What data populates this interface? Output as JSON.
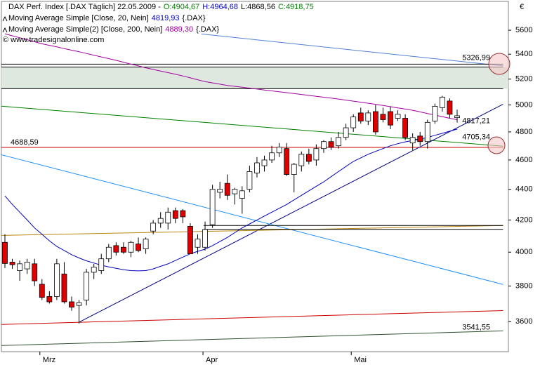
{
  "chart_data": {
    "type": "candlestick",
    "title": "DAX Perf. Index [.DAX Täglich] 22.05.2009 -",
    "ohlc_labels": [
      {
        "label": "O:4904,67",
        "color": "#008000"
      },
      {
        "label": "H:4964,68",
        "color": "#0000cc"
      },
      {
        "label": "L:4868,56",
        "color": "#000000"
      },
      {
        "label": "C:4918,75",
        "color": "#008000"
      }
    ],
    "symbol": "{.DAX}",
    "copyright": "© www.tradesignalonline.com",
    "currency": "€",
    "up_color": "#ffffff",
    "down_color": "#e00000",
    "log": true,
    "grid": false,
    "ylim": [
      3440,
      5850
    ],
    "yticks": [
      3600,
      3800,
      4000,
      4200,
      4400,
      4600,
      4800,
      5000,
      5200,
      5400,
      5600
    ],
    "categories": [
      null,
      null,
      null,
      null,
      null,
      "Mrz",
      null,
      null,
      null,
      null,
      null,
      null,
      null,
      null,
      null,
      null,
      null,
      null,
      null,
      null,
      null,
      null,
      null,
      null,
      null,
      null,
      null,
      "Apr",
      null,
      null,
      null,
      null,
      null,
      null,
      null,
      null,
      null,
      null,
      null,
      null,
      null,
      null,
      null,
      null,
      null,
      null,
      null,
      "Mai",
      null,
      null,
      null,
      null,
      null,
      null,
      null,
      null,
      null,
      null,
      null,
      null,
      null,
      null
    ],
    "open": [
      4060,
      3940,
      3890,
      3900,
      3930,
      3810,
      3740,
      3740,
      3870,
      3710,
      3690,
      3720,
      3880,
      3890,
      3960,
      4040,
      4030,
      4000,
      4050,
      4020,
      4130,
      4180,
      4180,
      4260,
      4260,
      4160,
      4030,
      4030,
      4170,
      4380,
      4440,
      4370,
      4340,
      4400,
      4510,
      4560,
      4600,
      4650,
      4680,
      4500,
      4560,
      4640,
      4600,
      4680,
      4730,
      4700,
      4760,
      4830,
      4940,
      4880,
      4950,
      4930,
      4950,
      4900,
      4900,
      4720,
      4770,
      4730,
      4880,
      4980,
      5030,
      4904.67
    ],
    "high": [
      4110,
      3960,
      3950,
      3960,
      3960,
      3840,
      3770,
      3960,
      3940,
      3740,
      3720,
      3900,
      3930,
      3990,
      4050,
      4060,
      4060,
      4070,
      4090,
      4090,
      4200,
      4250,
      4280,
      4280,
      4270,
      4180,
      4110,
      4190,
      4430,
      4450,
      4500,
      4410,
      4420,
      4560,
      4620,
      4630,
      4700,
      4720,
      4720,
      4580,
      4660,
      4680,
      4710,
      4740,
      4760,
      4800,
      4860,
      4930,
      4980,
      4960,
      5000,
      4980,
      4990,
      4960,
      4930,
      4790,
      4800,
      4890,
      5010,
      5070,
      5050,
      4964.68
    ],
    "low": [
      3905,
      3900,
      3830,
      3870,
      3800,
      3720,
      3700,
      3720,
      3700,
      3660,
      3590,
      3690,
      3840,
      3870,
      3940,
      3980,
      3990,
      3970,
      4000,
      3990,
      4110,
      4150,
      4140,
      4180,
      4180,
      3990,
      3990,
      4010,
      4150,
      4340,
      4330,
      4300,
      4240,
      4380,
      4480,
      4520,
      4580,
      4620,
      4490,
      4380,
      4520,
      4570,
      4560,
      4650,
      4670,
      4680,
      4740,
      4800,
      4860,
      4850,
      4780,
      4870,
      4820,
      4880,
      4740,
      4670,
      4700,
      4680,
      4860,
      4950,
      4900,
      4868.56
    ],
    "close": [
      3932,
      3925,
      3930,
      3940,
      3830,
      3735,
      3710,
      3930,
      3710,
      3680,
      3705,
      3880,
      3910,
      3960,
      4030,
      4000,
      4000,
      4060,
      4010,
      4080,
      4180,
      4210,
      4250,
      4210,
      4220,
      3990,
      4080,
      4140,
      4400,
      4400,
      4360,
      4400,
      4390,
      4520,
      4580,
      4600,
      4650,
      4690,
      4500,
      4570,
      4640,
      4590,
      4680,
      4730,
      4690,
      4760,
      4830,
      4910,
      4880,
      4940,
      4800,
      4890,
      4850,
      4930,
      4760,
      4760,
      4730,
      4870,
      4990,
      5060,
      4930,
      4918.75
    ],
    "series": [
      {
        "name": "Moving Average Simple [Close, 20, Nein]",
        "color": "#0000c0",
        "last_label": "4819,93",
        "values": [
          4356,
          4300,
          4250,
          4200,
          4150,
          4110,
          4070,
          4035,
          4010,
          3985,
          3965,
          3948,
          3935,
          3922,
          3912,
          3903,
          3895,
          3890,
          3888,
          3890,
          3900,
          3915,
          3930,
          3950,
          3970,
          3990,
          4005,
          4018,
          4040,
          4065,
          4090,
          4120,
          4150,
          4175,
          4200,
          4225,
          4250,
          4275,
          4300,
          4330,
          4360,
          4390,
          4420,
          4450,
          4485,
          4520,
          4555,
          4590,
          4615,
          4640,
          4660,
          4680,
          4700,
          4715,
          4728,
          4738,
          4748,
          4760,
          4775,
          4790,
          4805,
          4819.93
        ]
      },
      {
        "name": "Moving Average Simple(2) [Close, 200, Nein]",
        "color": "#a000a0",
        "last_label": "4889,30",
        "values": [
          5570,
          5553,
          5536,
          5520,
          5503,
          5486,
          5473,
          5460,
          5446,
          5433,
          5420,
          5406,
          5392,
          5378,
          5364,
          5350,
          5335,
          5320,
          5305,
          5290,
          5277,
          5264,
          5251,
          5238,
          5225,
          5210,
          5195,
          5180,
          5170,
          5160,
          5150,
          5143,
          5136,
          5129,
          5122,
          5115,
          5108,
          5101,
          5094,
          5087,
          5080,
          5073,
          5066,
          5059,
          5052,
          5045,
          5037,
          5029,
          5021,
          5013,
          5005,
          4996,
          4987,
          4978,
          4969,
          4960,
          4948,
          4936,
          4924,
          4912,
          4900,
          4889.3
        ]
      }
    ],
    "zones": [
      {
        "values": [
          5125,
          5296
        ],
        "color": "#dfe8df"
      }
    ],
    "lines": [
      {
        "color": "#5080d8",
        "x": [
          26.5,
          67.2
        ],
        "values": [
          5568,
          5305
        ],
        "label": "5326,99",
        "label_at": "right"
      },
      {
        "color": "#000000",
        "x": [
          -0.5,
          67.2
        ],
        "values": [
          5319,
          5319
        ]
      },
      {
        "color": "#000000",
        "x": [
          -0.5,
          67.2
        ],
        "values": [
          5296,
          5296
        ]
      },
      {
        "color": "#000000",
        "x": [
          -0.5,
          67.2
        ],
        "values": [
          5125,
          5125
        ]
      },
      {
        "color": "#008000",
        "x": [
          -0.5,
          67.2
        ],
        "values": [
          4991,
          4697
        ],
        "label": "4705,34",
        "label_at": "right"
      },
      {
        "color": "#cc0000",
        "x": [
          -0.5,
          67.2
        ],
        "values": [
          4688.59,
          4688.59
        ],
        "label": "4688,59",
        "label_at": "left"
      },
      {
        "color": "#000080",
        "x": [
          9.9,
          67.2
        ],
        "values": [
          3595,
          5006
        ],
        "label": "4817,21",
        "label_at": "right"
      },
      {
        "color": "#1e90ff",
        "x": [
          -0.5,
          67.2
        ],
        "values": [
          4637,
          3809
        ]
      },
      {
        "color": "#b8860b",
        "x": [
          -0.5,
          67.2
        ],
        "values": [
          4103,
          4165
        ]
      },
      {
        "color": "#000000",
        "x": [
          26.8,
          67.2
        ],
        "values": [
          4165,
          4165
        ]
      },
      {
        "color": "#000000",
        "x": [
          26.8,
          67.2
        ],
        "values": [
          4141,
          4141
        ]
      },
      {
        "color": "#cc0000",
        "x": [
          -0.5,
          67.2
        ],
        "values": [
          3585,
          3661
        ]
      },
      {
        "color": "#2f4f2f",
        "x": [
          -0.5,
          67.2
        ],
        "values": [
          3472,
          3550
        ],
        "label": "3541,55",
        "label_at": "right"
      }
    ]
  }
}
